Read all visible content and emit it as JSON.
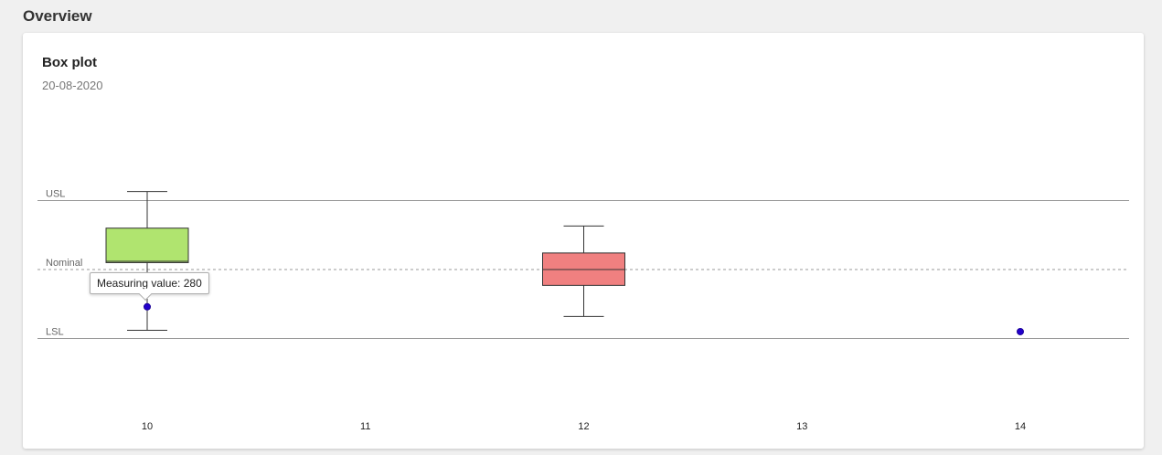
{
  "page": {
    "section_title": "Overview"
  },
  "card": {
    "title": "Box plot",
    "subtitle": "20-08-2020"
  },
  "tooltip": {
    "label": "Measuring value",
    "value": 280,
    "text": "Measuring value: 280"
  },
  "colors": {
    "in_spec_box": "#b0e46f",
    "out_of_spec_box": "#f08080",
    "point": "#2200cc",
    "limit_line": "#999999",
    "nominal_line": "#999999"
  },
  "chart_data": {
    "type": "box",
    "title": "Box plot",
    "subtitle": "20-08-2020",
    "categories": [
      "10",
      "11",
      "12",
      "13",
      "14"
    ],
    "reference_lines": [
      {
        "label": "USL",
        "value": 100,
        "style": "solid"
      },
      {
        "label": "Nominal",
        "value": 0,
        "style": "dashed"
      },
      {
        "label": "LSL",
        "value": -100,
        "style": "solid"
      }
    ],
    "ylim": [
      -170,
      220
    ],
    "grid": false,
    "boxes": [
      {
        "category": "10",
        "min": -88,
        "q1": 10,
        "median": 12,
        "q3": 60,
        "max": 113,
        "color": "in_spec_box"
      },
      {
        "category": "12",
        "min": -68,
        "q1": -23,
        "median": 0,
        "q3": 24,
        "max": 63,
        "color": "out_of_spec_box"
      }
    ],
    "points": [
      {
        "category": "10",
        "value": -54
      },
      {
        "category": "14",
        "value": -90
      }
    ]
  }
}
